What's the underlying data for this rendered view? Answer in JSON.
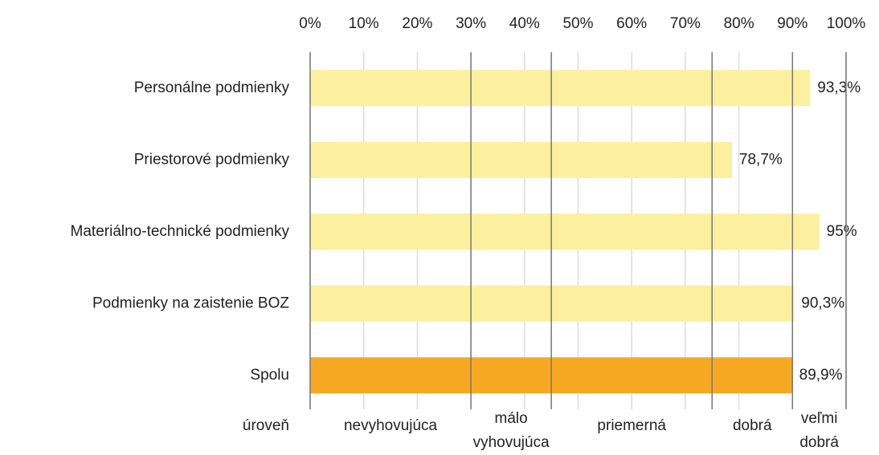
{
  "chart_data": {
    "type": "bar",
    "orientation": "horizontal",
    "categories": [
      "Personálne podmienky",
      "Priestorové podmienky",
      "Materiálno-technické podmienky",
      "Podmienky na zaistenie BOZ",
      "Spolu"
    ],
    "values": [
      93.3,
      78.7,
      95,
      90.3,
      89.9
    ],
    "value_labels": [
      "93,3%",
      "78,7%",
      "95%",
      "90,3%",
      "89,9%"
    ],
    "colors": [
      "#fcef9e",
      "#fcef9e",
      "#fcef9e",
      "#fcef9e",
      "#f7a823"
    ],
    "xlim": [
      0,
      100
    ],
    "xticks": [
      {
        "value": 0,
        "label": "0%"
      },
      {
        "value": 10,
        "label": "10%"
      },
      {
        "value": 20,
        "label": "20%"
      },
      {
        "value": 30,
        "label": "30%"
      },
      {
        "value": 40,
        "label": "40%"
      },
      {
        "value": 50,
        "label": "50%"
      },
      {
        "value": 60,
        "label": "60%"
      },
      {
        "value": 70,
        "label": "70%"
      },
      {
        "value": 80,
        "label": "80%"
      },
      {
        "value": 90,
        "label": "90%"
      },
      {
        "value": 100,
        "label": "100%"
      }
    ],
    "grid": true,
    "level_title": "úroveň",
    "levels": [
      {
        "lines": [
          "nevyhovujúca"
        ],
        "from": 0,
        "to": 30
      },
      {
        "lines": [
          "málo",
          "vyhovujúca"
        ],
        "from": 30,
        "to": 45
      },
      {
        "lines": [
          "priemerná"
        ],
        "from": 45,
        "to": 75
      },
      {
        "lines": [
          "dobrá"
        ],
        "from": 75,
        "to": 90
      },
      {
        "lines": [
          "veľmi",
          "dobrá"
        ],
        "from": 90,
        "to": 100
      }
    ]
  }
}
